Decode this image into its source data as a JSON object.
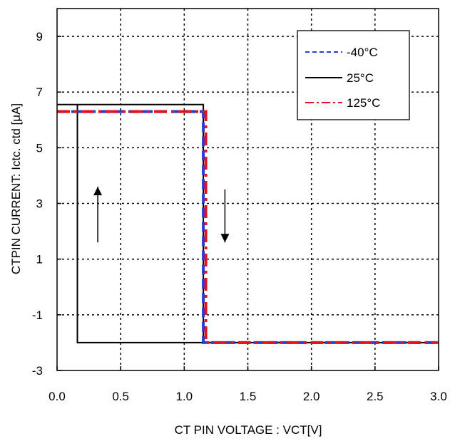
{
  "chart_data": {
    "type": "line",
    "title": "",
    "xlabel": "CT PIN VOLTAGE : VCT[V]",
    "ylabel": "CTPIN CURRENT: Ictc. ctd [μA]",
    "xlim": [
      0.0,
      3.0
    ],
    "ylim": [
      -3,
      10
    ],
    "x_ticks": [
      "0.0",
      "0.5",
      "1.0",
      "1.5",
      "2.0",
      "2.5",
      "3.0"
    ],
    "y_ticks": [
      "-3",
      "-1",
      "1",
      "3",
      "5",
      "7",
      "9"
    ],
    "grid": true,
    "legend_position": "top-right",
    "series": [
      {
        "name": "-40°C",
        "color": "#1f3fd6",
        "style": "dashed",
        "points": [
          [
            0.0,
            6.3
          ],
          [
            1.15,
            6.3
          ],
          [
            1.15,
            -2.0
          ],
          [
            3.0,
            -2.0
          ]
        ]
      },
      {
        "name": "25°C",
        "color": "#000000",
        "style": "solid",
        "points": [
          [
            0.0,
            6.55
          ],
          [
            1.15,
            6.55
          ],
          [
            1.15,
            -2.0
          ],
          [
            3.0,
            -2.0
          ],
          [
            0.16,
            -2.0
          ],
          [
            0.16,
            6.55
          ]
        ]
      },
      {
        "name": "125°C",
        "color": "#e0141e",
        "style": "dashdot",
        "points": [
          [
            0.0,
            6.3
          ],
          [
            1.17,
            6.3
          ],
          [
            1.17,
            -2.0
          ],
          [
            3.0,
            -2.0
          ]
        ]
      }
    ],
    "annotations": [
      {
        "type": "arrow",
        "direction": "up",
        "x": 0.32,
        "y_from": 1.6,
        "y_to": 3.6
      },
      {
        "type": "arrow",
        "direction": "down",
        "x": 1.32,
        "y_from": 3.5,
        "y_to": 1.6
      }
    ]
  }
}
